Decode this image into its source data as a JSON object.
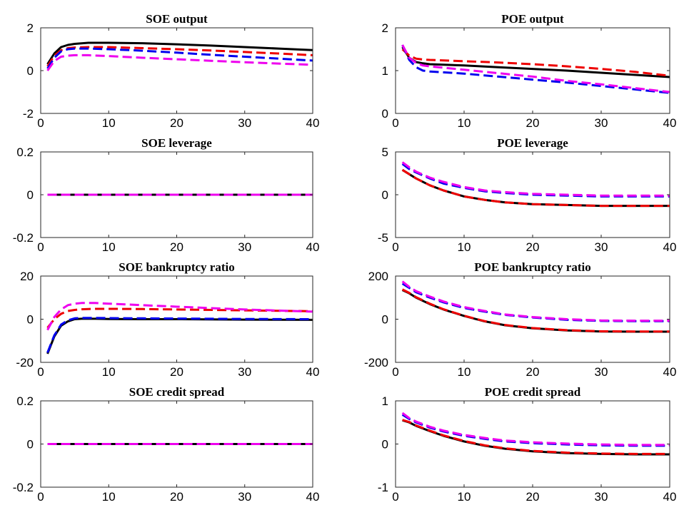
{
  "chart_data": [
    {
      "type": "line",
      "title": "SOE output",
      "xlabel": "",
      "ylabel": "",
      "xlim": [
        0,
        40
      ],
      "ylim": [
        -2,
        2
      ],
      "xticks": [
        0,
        10,
        20,
        30,
        40
      ],
      "yticks": [
        -2,
        0,
        2
      ],
      "grid": false,
      "series": [
        {
          "color": "#000000",
          "dash": "solid",
          "x": [
            1,
            2,
            3,
            4,
            5,
            7,
            10,
            15,
            20,
            25,
            30,
            35,
            40
          ],
          "y": [
            0.3,
            0.8,
            1.1,
            1.2,
            1.25,
            1.3,
            1.3,
            1.28,
            1.23,
            1.17,
            1.1,
            1.03,
            0.96
          ]
        },
        {
          "color": "#ee0000",
          "dash": "dashed",
          "x": [
            1,
            2,
            3,
            4,
            5,
            7,
            10,
            15,
            20,
            25,
            30,
            35,
            40
          ],
          "y": [
            0.2,
            0.7,
            0.95,
            1.05,
            1.08,
            1.1,
            1.1,
            1.05,
            1.0,
            0.94,
            0.87,
            0.8,
            0.72
          ]
        },
        {
          "color": "#0000ee",
          "dash": "dashed",
          "x": [
            1,
            2,
            3,
            4,
            5,
            7,
            10,
            15,
            20,
            25,
            30,
            35,
            40
          ],
          "y": [
            0.1,
            0.6,
            0.9,
            1.0,
            1.03,
            1.03,
            1.0,
            0.93,
            0.84,
            0.74,
            0.65,
            0.56,
            0.47
          ]
        },
        {
          "color": "#ee00ee",
          "dash": "dashed",
          "x": [
            1,
            2,
            3,
            4,
            5,
            7,
            10,
            15,
            20,
            25,
            30,
            35,
            40
          ],
          "y": [
            0.0,
            0.45,
            0.65,
            0.7,
            0.72,
            0.72,
            0.68,
            0.6,
            0.53,
            0.46,
            0.39,
            0.33,
            0.27
          ]
        }
      ]
    },
    {
      "type": "line",
      "title": "POE output",
      "xlabel": "",
      "ylabel": "",
      "xlim": [
        0,
        40
      ],
      "ylim": [
        0,
        2
      ],
      "xticks": [
        0,
        10,
        20,
        30,
        40
      ],
      "yticks": [
        0,
        1,
        2
      ],
      "grid": false,
      "series": [
        {
          "color": "#000000",
          "dash": "solid",
          "x": [
            1,
            2,
            3,
            4,
            5,
            10,
            15,
            20,
            25,
            30,
            35,
            40
          ],
          "y": [
            1.55,
            1.3,
            1.2,
            1.17,
            1.15,
            1.12,
            1.08,
            1.04,
            1.0,
            0.95,
            0.9,
            0.85
          ]
        },
        {
          "color": "#ee0000",
          "dash": "dashed",
          "x": [
            1,
            2,
            3,
            4,
            5,
            10,
            15,
            20,
            25,
            30,
            35,
            40
          ],
          "y": [
            1.5,
            1.35,
            1.28,
            1.26,
            1.25,
            1.22,
            1.19,
            1.15,
            1.1,
            1.04,
            0.97,
            0.88
          ]
        },
        {
          "color": "#0000ee",
          "dash": "dashed",
          "x": [
            1,
            2,
            3,
            4,
            5,
            10,
            15,
            20,
            25,
            30,
            35,
            40
          ],
          "y": [
            1.6,
            1.25,
            1.08,
            1.0,
            0.98,
            0.93,
            0.86,
            0.79,
            0.72,
            0.64,
            0.56,
            0.48
          ]
        },
        {
          "color": "#ee00ee",
          "dash": "dashed",
          "x": [
            1,
            2,
            3,
            4,
            5,
            10,
            15,
            20,
            25,
            30,
            35,
            40
          ],
          "y": [
            1.6,
            1.3,
            1.18,
            1.12,
            1.1,
            1.02,
            0.94,
            0.86,
            0.76,
            0.68,
            0.59,
            0.5
          ]
        }
      ]
    },
    {
      "type": "line",
      "title": "SOE leverage",
      "xlabel": "",
      "ylabel": "",
      "xlim": [
        0,
        40
      ],
      "ylim": [
        -0.2,
        0.2
      ],
      "xticks": [
        0,
        10,
        20,
        30,
        40
      ],
      "yticks": [
        -0.2,
        0,
        0.2
      ],
      "grid": false,
      "series": [
        {
          "color": "#000000",
          "dash": "solid",
          "x": [
            1,
            40
          ],
          "y": [
            0,
            0
          ]
        },
        {
          "color": "#ee0000",
          "dash": "dashed",
          "x": [
            1,
            40
          ],
          "y": [
            0,
            0
          ]
        },
        {
          "color": "#0000ee",
          "dash": "dashed",
          "x": [
            1,
            40
          ],
          "y": [
            0,
            0
          ]
        },
        {
          "color": "#ee00ee",
          "dash": "dashed",
          "x": [
            1,
            40
          ],
          "y": [
            0,
            0
          ]
        }
      ]
    },
    {
      "type": "line",
      "title": "POE leverage",
      "xlabel": "",
      "ylabel": "",
      "xlim": [
        0,
        40
      ],
      "ylim": [
        -5,
        5
      ],
      "xticks": [
        0,
        10,
        20,
        30,
        40
      ],
      "yticks": [
        -5,
        0,
        5
      ],
      "grid": false,
      "series": [
        {
          "color": "#000000",
          "dash": "solid",
          "x": [
            1,
            2,
            3,
            5,
            7,
            10,
            13,
            16,
            20,
            25,
            30,
            35,
            40
          ],
          "y": [
            2.9,
            2.4,
            1.9,
            1.1,
            0.5,
            -0.2,
            -0.6,
            -0.9,
            -1.1,
            -1.2,
            -1.3,
            -1.3,
            -1.3
          ]
        },
        {
          "color": "#ee0000",
          "dash": "dashed",
          "x": [
            1,
            2,
            3,
            5,
            7,
            10,
            13,
            16,
            20,
            25,
            30,
            35,
            40
          ],
          "y": [
            2.9,
            2.4,
            1.9,
            1.1,
            0.5,
            -0.2,
            -0.6,
            -0.9,
            -1.1,
            -1.2,
            -1.3,
            -1.3,
            -1.3
          ]
        },
        {
          "color": "#0000ee",
          "dash": "dashed",
          "x": [
            1,
            2,
            3,
            5,
            7,
            10,
            13,
            16,
            20,
            25,
            30,
            35,
            40
          ],
          "y": [
            3.6,
            3.0,
            2.6,
            1.9,
            1.3,
            0.8,
            0.4,
            0.2,
            0.0,
            -0.1,
            -0.2,
            -0.2,
            -0.2
          ]
        },
        {
          "color": "#ee00ee",
          "dash": "dashed",
          "x": [
            1,
            2,
            3,
            5,
            7,
            10,
            13,
            16,
            20,
            25,
            30,
            35,
            40
          ],
          "y": [
            3.8,
            3.2,
            2.7,
            2.0,
            1.5,
            0.9,
            0.5,
            0.3,
            0.1,
            0.0,
            -0.1,
            -0.1,
            -0.1
          ]
        }
      ]
    },
    {
      "type": "line",
      "title": "SOE bankruptcy ratio",
      "xlabel": "",
      "ylabel": "",
      "xlim": [
        0,
        40
      ],
      "ylim": [
        -20,
        20
      ],
      "xticks": [
        0,
        10,
        20,
        30,
        40
      ],
      "yticks": [
        -20,
        0,
        20
      ],
      "grid": false,
      "series": [
        {
          "color": "#000000",
          "dash": "solid",
          "x": [
            1,
            2,
            3,
            4,
            5,
            6,
            8,
            10,
            15,
            20,
            30,
            40
          ],
          "y": [
            -16,
            -8,
            -3,
            -1,
            0,
            0.2,
            0.2,
            0.1,
            0,
            0,
            -0.2,
            -0.3
          ]
        },
        {
          "color": "#0000ee",
          "dash": "dashed",
          "x": [
            1,
            2,
            3,
            4,
            5,
            6,
            8,
            10,
            15,
            20,
            30,
            40
          ],
          "y": [
            -15.5,
            -7.5,
            -2.5,
            -0.5,
            0.4,
            0.6,
            0.6,
            0.5,
            0.4,
            0.3,
            0.1,
            0
          ]
        },
        {
          "color": "#ee0000",
          "dash": "dashed",
          "x": [
            1,
            2,
            3,
            4,
            5,
            6,
            8,
            10,
            15,
            20,
            30,
            40
          ],
          "y": [
            -4,
            0,
            2.5,
            3.8,
            4.3,
            4.6,
            4.8,
            4.8,
            4.7,
            4.5,
            4.1,
            3.7
          ]
        },
        {
          "color": "#ee00ee",
          "dash": "dashed",
          "x": [
            1,
            2,
            3,
            4,
            5,
            6,
            8,
            10,
            15,
            20,
            30,
            40
          ],
          "y": [
            -5,
            1,
            4.5,
            6.5,
            7.2,
            7.5,
            7.5,
            7.2,
            6.5,
            5.8,
            4.5,
            3.5
          ]
        }
      ]
    },
    {
      "type": "line",
      "title": "POE bankruptcy ratio",
      "xlabel": "",
      "ylabel": "",
      "xlim": [
        0,
        40
      ],
      "ylim": [
        -200,
        200
      ],
      "xticks": [
        0,
        10,
        20,
        30,
        40
      ],
      "yticks": [
        -200,
        0,
        200
      ],
      "grid": false,
      "series": [
        {
          "color": "#000000",
          "dash": "solid",
          "x": [
            1,
            2,
            3,
            5,
            7,
            10,
            13,
            16,
            20,
            25,
            30,
            35,
            40
          ],
          "y": [
            135,
            120,
            100,
            70,
            45,
            15,
            -10,
            -28,
            -42,
            -52,
            -57,
            -58,
            -58
          ]
        },
        {
          "color": "#ee0000",
          "dash": "dashed",
          "x": [
            1,
            2,
            3,
            5,
            7,
            10,
            13,
            16,
            20,
            25,
            30,
            35,
            40
          ],
          "y": [
            138,
            122,
            102,
            72,
            46,
            16,
            -9,
            -27,
            -41,
            -51,
            -56,
            -57,
            -57
          ]
        },
        {
          "color": "#0000ee",
          "dash": "dashed",
          "x": [
            1,
            2,
            3,
            5,
            7,
            10,
            13,
            16,
            20,
            25,
            30,
            35,
            40
          ],
          "y": [
            165,
            145,
            125,
            100,
            78,
            52,
            35,
            20,
            8,
            -3,
            -8,
            -9,
            -9
          ]
        },
        {
          "color": "#ee00ee",
          "dash": "dashed",
          "x": [
            1,
            2,
            3,
            5,
            7,
            10,
            13,
            16,
            20,
            25,
            30,
            35,
            40
          ],
          "y": [
            175,
            150,
            130,
            105,
            82,
            56,
            38,
            22,
            10,
            0,
            -6,
            -7,
            -7
          ]
        }
      ]
    },
    {
      "type": "line",
      "title": "SOE credit spread",
      "xlabel": "",
      "ylabel": "",
      "xlim": [
        0,
        40
      ],
      "ylim": [
        -0.2,
        0.2
      ],
      "xticks": [
        0,
        10,
        20,
        30,
        40
      ],
      "yticks": [
        -0.2,
        0,
        0.2
      ],
      "grid": false,
      "series": [
        {
          "color": "#000000",
          "dash": "solid",
          "x": [
            1,
            40
          ],
          "y": [
            0,
            0
          ]
        },
        {
          "color": "#ee0000",
          "dash": "dashed",
          "x": [
            1,
            40
          ],
          "y": [
            0,
            0
          ]
        },
        {
          "color": "#0000ee",
          "dash": "dashed",
          "x": [
            1,
            40
          ],
          "y": [
            0,
            0
          ]
        },
        {
          "color": "#ee00ee",
          "dash": "dashed",
          "x": [
            1,
            40
          ],
          "y": [
            0,
            0
          ]
        }
      ]
    },
    {
      "type": "line",
      "title": "POE credit spread",
      "xlabel": "",
      "ylabel": "",
      "xlim": [
        0,
        40
      ],
      "ylim": [
        -1,
        1
      ],
      "xticks": [
        0,
        10,
        20,
        30,
        40
      ],
      "yticks": [
        -1,
        0,
        1
      ],
      "grid": false,
      "series": [
        {
          "color": "#000000",
          "dash": "solid",
          "x": [
            1,
            2,
            3,
            5,
            7,
            10,
            13,
            16,
            20,
            25,
            30,
            35,
            40
          ],
          "y": [
            0.55,
            0.5,
            0.42,
            0.3,
            0.19,
            0.06,
            -0.04,
            -0.11,
            -0.17,
            -0.21,
            -0.23,
            -0.24,
            -0.24
          ]
        },
        {
          "color": "#ee0000",
          "dash": "dashed",
          "x": [
            1,
            2,
            3,
            5,
            7,
            10,
            13,
            16,
            20,
            25,
            30,
            35,
            40
          ],
          "y": [
            0.56,
            0.51,
            0.43,
            0.31,
            0.2,
            0.07,
            -0.03,
            -0.1,
            -0.16,
            -0.2,
            -0.22,
            -0.23,
            -0.23
          ]
        },
        {
          "color": "#0000ee",
          "dash": "dashed",
          "x": [
            1,
            2,
            3,
            5,
            7,
            10,
            13,
            16,
            20,
            25,
            30,
            35,
            40
          ],
          "y": [
            0.68,
            0.58,
            0.5,
            0.38,
            0.29,
            0.19,
            0.12,
            0.06,
            0.02,
            -0.01,
            -0.03,
            -0.04,
            -0.04
          ]
        },
        {
          "color": "#ee00ee",
          "dash": "dashed",
          "x": [
            1,
            2,
            3,
            5,
            7,
            10,
            13,
            16,
            20,
            25,
            30,
            35,
            40
          ],
          "y": [
            0.72,
            0.6,
            0.52,
            0.4,
            0.31,
            0.21,
            0.14,
            0.08,
            0.04,
            0.01,
            -0.01,
            -0.02,
            -0.02
          ]
        }
      ]
    }
  ]
}
